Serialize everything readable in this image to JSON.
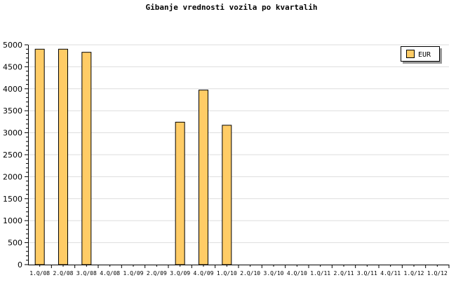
{
  "chart_data": {
    "type": "bar",
    "title": "Gibanje vrednosti vozila po kvartalih",
    "categories": [
      "1.Q/08",
      "2.Q/08",
      "3.Q/08",
      "4.Q/08",
      "1.Q/09",
      "2.Q/09",
      "3.Q/09",
      "4.Q/09",
      "1.Q/10",
      "2.Q/10",
      "3.Q/10",
      "4.Q/10",
      "1.Q/11",
      "2.Q/11",
      "3.Q/11",
      "4.Q/11",
      "1.Q/12",
      "1.Q/12"
    ],
    "series": [
      {
        "name": "EUR",
        "color": "#ffcc66",
        "values": [
          4900,
          4900,
          4830,
          null,
          null,
          null,
          3240,
          3970,
          3170,
          null,
          null,
          null,
          null,
          null,
          null,
          null,
          null,
          null
        ]
      }
    ],
    "ylim": [
      0,
      5000
    ],
    "yticks": [
      0,
      500,
      1000,
      1500,
      2000,
      2500,
      3000,
      3500,
      4000,
      4500,
      5000
    ],
    "grid": true,
    "legend": "top-right"
  }
}
